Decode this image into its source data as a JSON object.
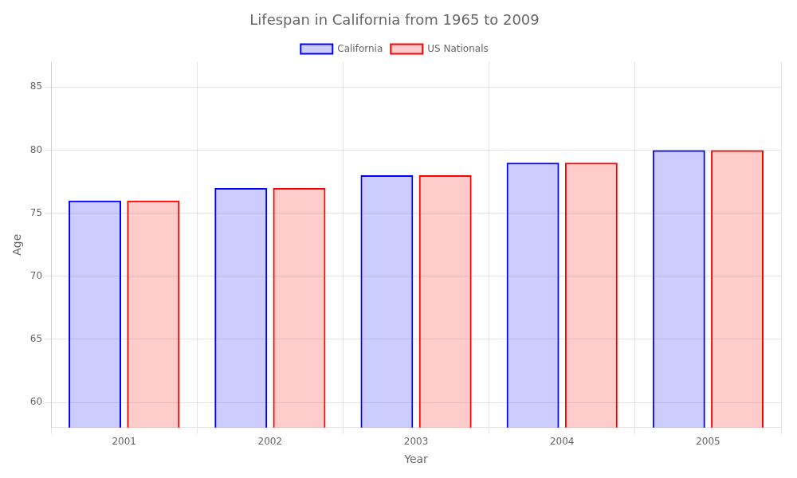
{
  "chart_data": {
    "type": "bar",
    "title": "Lifespan in California from 1965 to 2009",
    "xlabel": "Year",
    "ylabel": "Age",
    "categories": [
      2001,
      2002,
      2003,
      2004,
      2005
    ],
    "series": [
      {
        "name": "California",
        "color": "#0000ff",
        "values": [
          76,
          77,
          78,
          79,
          80
        ]
      },
      {
        "name": "US Nationals",
        "color": "#ff0000",
        "values": [
          76,
          77,
          78,
          79,
          80
        ]
      }
    ],
    "ylim": [
      58,
      87
    ],
    "yticks": [
      60,
      65,
      70,
      75,
      80,
      85
    ],
    "grid": true,
    "legend": "top"
  }
}
